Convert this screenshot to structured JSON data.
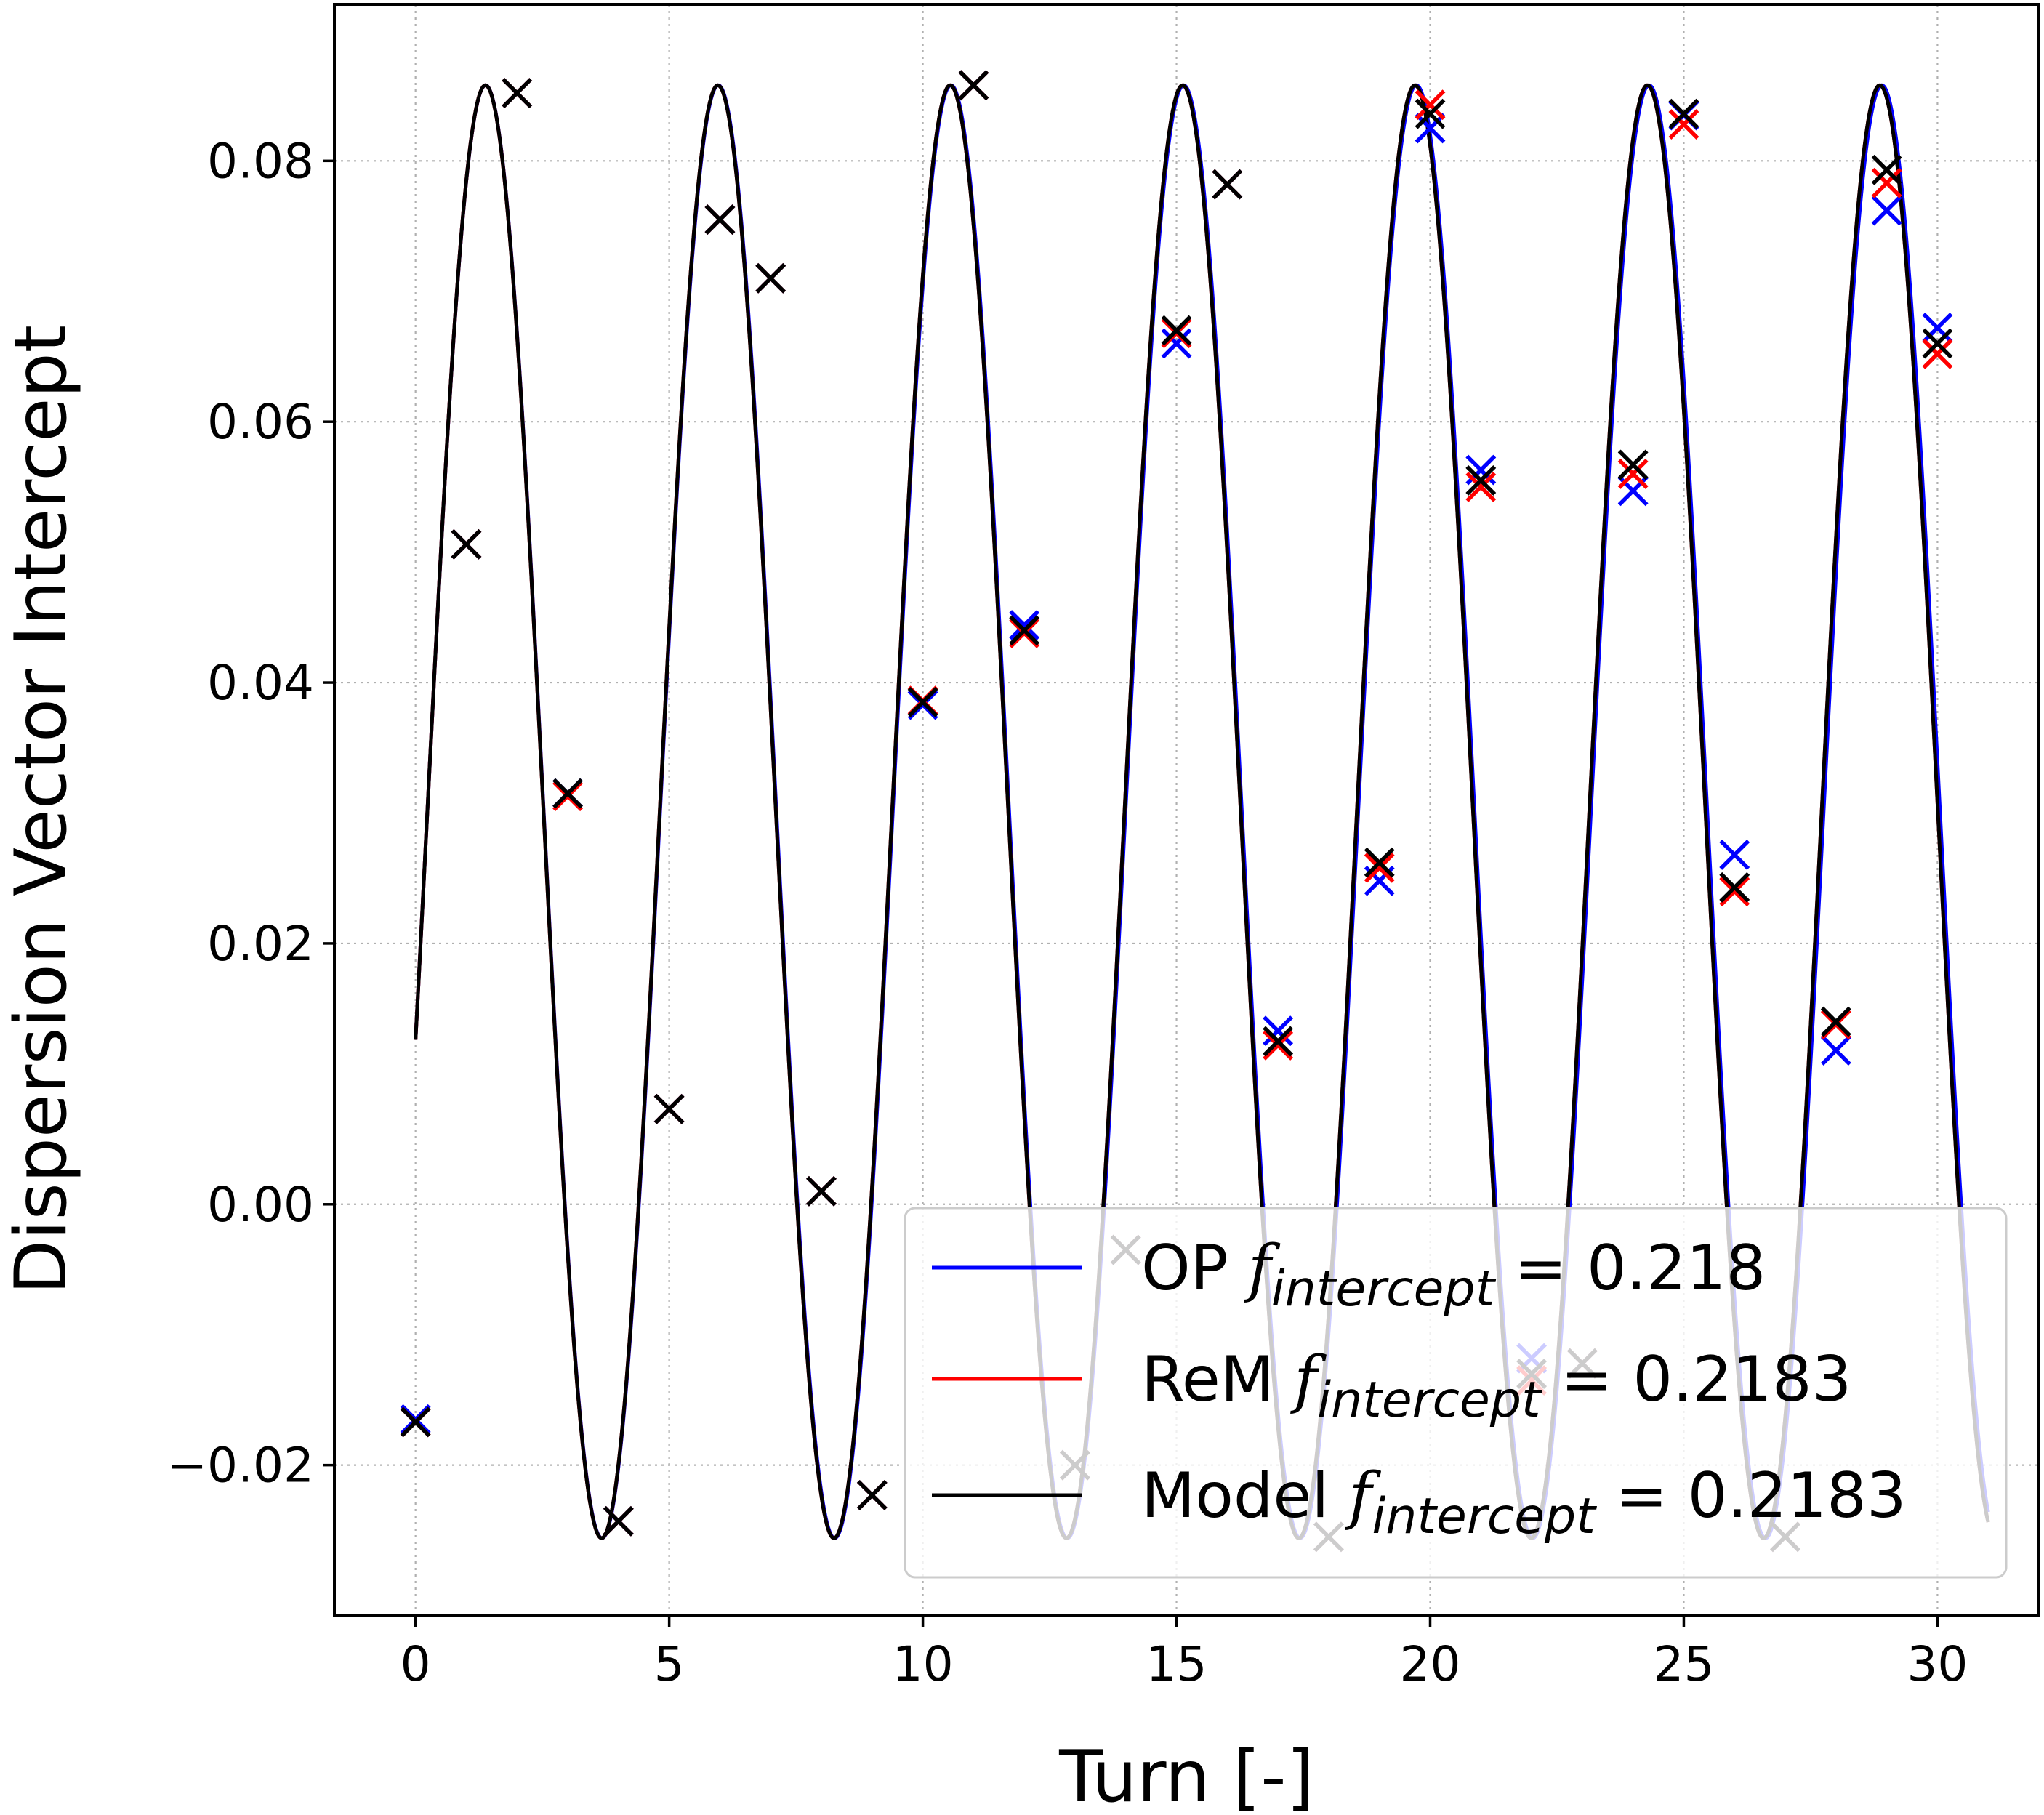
{
  "chart_data": {
    "type": "line",
    "xlabel": "Turn [-]",
    "ylabel": "Dispersion Vector Intercept",
    "xlim": [
      -1.6,
      32.0
    ],
    "ylim": [
      -0.0315,
      0.092
    ],
    "xticks": [
      0,
      5,
      10,
      15,
      20,
      25,
      30
    ],
    "xtick_labels": [
      "0",
      "5",
      "10",
      "15",
      "20",
      "25",
      "30"
    ],
    "yticks": [
      -0.02,
      0.0,
      0.02,
      0.04,
      0.06,
      0.08
    ],
    "ytick_labels": [
      "−0.02",
      "0.00",
      "0.02",
      "0.04",
      "0.06",
      "0.08"
    ],
    "grid": true,
    "legend_position": "bottom-right",
    "series": [
      {
        "name": "OP",
        "tune_label": "intercept",
        "tune_value": "0.218",
        "color": "#0000ff",
        "model": {
          "freq": 0.218,
          "amplitude": 0.0557,
          "offset": 0.0301,
          "phase": -1.89
        },
        "points": [
          [
            0,
            -0.0165
          ],
          [
            1,
            0.0506
          ],
          [
            2,
            0.0852
          ],
          [
            3,
            0.0315
          ],
          [
            4,
            -0.0243
          ],
          [
            5,
            0.0073
          ],
          [
            6,
            0.0755
          ],
          [
            7,
            0.071
          ],
          [
            8,
            0.001
          ],
          [
            9,
            -0.0223
          ],
          [
            10,
            0.0383
          ],
          [
            11,
            0.0858
          ],
          [
            12,
            0.0444
          ],
          [
            13,
            -0.02
          ],
          [
            14,
            -0.0035
          ],
          [
            15,
            0.066
          ],
          [
            16,
            0.0782
          ],
          [
            17,
            0.0133
          ],
          [
            18,
            -0.0255
          ],
          [
            19,
            0.0248
          ],
          [
            20,
            0.0825
          ],
          [
            21,
            0.0563
          ],
          [
            22,
            -0.0118
          ],
          [
            23,
            -0.0122
          ],
          [
            24,
            0.0547
          ],
          [
            25,
            0.0835
          ],
          [
            26,
            0.0268
          ],
          [
            27,
            -0.0255
          ],
          [
            28,
            0.0118
          ],
          [
            29,
            0.0762
          ],
          [
            30,
            0.0672
          ]
        ]
      },
      {
        "name": "ReM",
        "tune_label": "intercept",
        "tune_value": "0.2183",
        "color": "#ff0000",
        "model": {
          "freq": 0.2183,
          "amplitude": 0.0557,
          "offset": 0.0301,
          "phase": -1.89
        },
        "points": [
          [
            0,
            -0.0167
          ],
          [
            1,
            0.0506
          ],
          [
            2,
            0.0852
          ],
          [
            3,
            0.0313
          ],
          [
            4,
            -0.0243
          ],
          [
            5,
            0.0073
          ],
          [
            6,
            0.0755
          ],
          [
            7,
            0.071
          ],
          [
            8,
            0.001
          ],
          [
            9,
            -0.0223
          ],
          [
            10,
            0.0386
          ],
          [
            11,
            0.0858
          ],
          [
            12,
            0.0438
          ],
          [
            13,
            -0.02
          ],
          [
            14,
            -0.0035
          ],
          [
            15,
            0.0668
          ],
          [
            16,
            0.0782
          ],
          [
            17,
            0.0122
          ],
          [
            18,
            -0.0255
          ],
          [
            19,
            0.0258
          ],
          [
            20,
            0.0843
          ],
          [
            21,
            0.055
          ],
          [
            22,
            -0.0135
          ],
          [
            23,
            -0.0122
          ],
          [
            24,
            0.056
          ],
          [
            25,
            0.0828
          ],
          [
            26,
            0.024
          ],
          [
            27,
            -0.0255
          ],
          [
            28,
            0.0138
          ],
          [
            29,
            0.0783
          ],
          [
            30,
            0.0652
          ]
        ]
      },
      {
        "name": "Model",
        "tune_label": "intercept",
        "tune_value": "0.2183",
        "color": "#000000",
        "model": {
          "freq": 0.2183,
          "amplitude": 0.0557,
          "offset": 0.0301,
          "phase": -1.89
        },
        "points": [
          [
            0,
            -0.0167
          ],
          [
            1,
            0.0506
          ],
          [
            2,
            0.0852
          ],
          [
            3,
            0.0315
          ],
          [
            4,
            -0.0243
          ],
          [
            5,
            0.0073
          ],
          [
            6,
            0.0755
          ],
          [
            7,
            0.071
          ],
          [
            8,
            0.001
          ],
          [
            9,
            -0.0223
          ],
          [
            10,
            0.0385
          ],
          [
            11,
            0.0858
          ],
          [
            12,
            0.044
          ],
          [
            13,
            -0.02
          ],
          [
            14,
            -0.0035
          ],
          [
            15,
            0.067
          ],
          [
            16,
            0.0782
          ],
          [
            17,
            0.0125
          ],
          [
            18,
            -0.0255
          ],
          [
            19,
            0.0262
          ],
          [
            20,
            0.0836
          ],
          [
            21,
            0.0555
          ],
          [
            22,
            -0.013
          ],
          [
            23,
            -0.0122
          ],
          [
            24,
            0.0567
          ],
          [
            25,
            0.0836
          ],
          [
            26,
            0.0243
          ],
          [
            27,
            -0.0255
          ],
          [
            28,
            0.014
          ],
          [
            29,
            0.0793
          ],
          [
            30,
            0.066
          ]
        ]
      }
    ],
    "model_x_range": [
      0,
      31
    ]
  }
}
